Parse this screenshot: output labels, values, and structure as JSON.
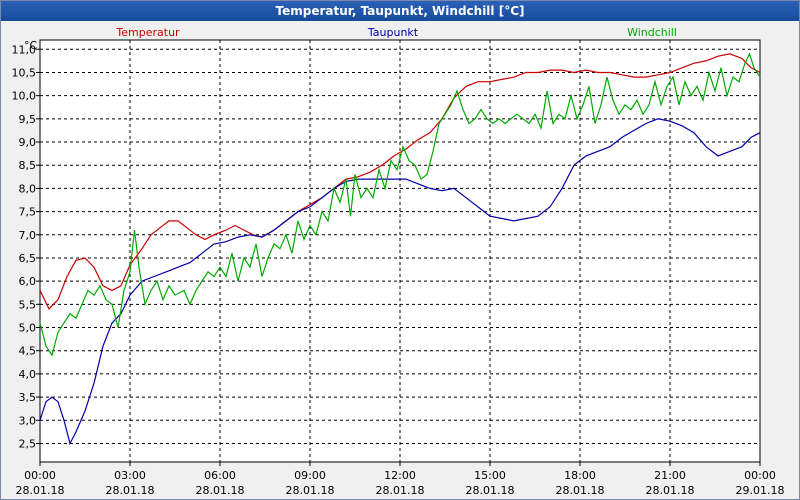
{
  "window": {
    "title": "Temperatur, Taupunkt, Windchill [°C]"
  },
  "chart_data": {
    "type": "line",
    "title": "Temperatur, Taupunkt, Windchill [°C]",
    "ylabel": "°C",
    "xlabel": "",
    "ylim": [
      2.1,
      11.2
    ],
    "xlim": [
      0,
      24
    ],
    "grid": true,
    "y_ticks": [
      "2,5",
      "3,0",
      "3,5",
      "4,0",
      "4,5",
      "5,0",
      "5,5",
      "6,0",
      "6,5",
      "7,0",
      "7,5",
      "8,0",
      "8,5",
      "9,0",
      "9,5",
      "10,0",
      "10,5",
      "11,0"
    ],
    "y_tick_values": [
      2.5,
      3.0,
      3.5,
      4.0,
      4.5,
      5.0,
      5.5,
      6.0,
      6.5,
      7.0,
      7.5,
      8.0,
      8.5,
      9.0,
      9.5,
      10.0,
      10.5,
      11.0
    ],
    "x_ticks": [
      {
        "time": "00:00",
        "date": "28.01.18",
        "h": 0
      },
      {
        "time": "03:00",
        "date": "28.01.18",
        "h": 3
      },
      {
        "time": "06:00",
        "date": "28.01.18",
        "h": 6
      },
      {
        "time": "09:00",
        "date": "28.01.18",
        "h": 9
      },
      {
        "time": "12:00",
        "date": "28.01.18",
        "h": 12
      },
      {
        "time": "15:00",
        "date": "28.01.18",
        "h": 15
      },
      {
        "time": "18:00",
        "date": "28.01.18",
        "h": 18
      },
      {
        "time": "21:00",
        "date": "28.01.18",
        "h": 21
      },
      {
        "time": "00:00",
        "date": "29.01.18",
        "h": 24
      }
    ],
    "legend_position": "top",
    "series": [
      {
        "name": "Temperatur",
        "color": "#cc0000",
        "points": [
          [
            0,
            5.8
          ],
          [
            0.3,
            5.4
          ],
          [
            0.6,
            5.6
          ],
          [
            0.9,
            6.1
          ],
          [
            1.2,
            6.45
          ],
          [
            1.5,
            6.5
          ],
          [
            1.8,
            6.3
          ],
          [
            2.1,
            5.9
          ],
          [
            2.4,
            5.8
          ],
          [
            2.7,
            5.9
          ],
          [
            3.0,
            6.35
          ],
          [
            3.4,
            6.7
          ],
          [
            3.7,
            7.0
          ],
          [
            4.0,
            7.15
          ],
          [
            4.3,
            7.3
          ],
          [
            4.6,
            7.3
          ],
          [
            4.9,
            7.15
          ],
          [
            5.2,
            7.0
          ],
          [
            5.5,
            6.9
          ],
          [
            5.8,
            7.0
          ],
          [
            6.2,
            7.1
          ],
          [
            6.5,
            7.2
          ],
          [
            6.8,
            7.1
          ],
          [
            7.1,
            7.0
          ],
          [
            7.4,
            6.95
          ],
          [
            7.8,
            7.1
          ],
          [
            8.2,
            7.3
          ],
          [
            8.6,
            7.5
          ],
          [
            9.0,
            7.65
          ],
          [
            9.4,
            7.8
          ],
          [
            9.8,
            8.0
          ],
          [
            10.2,
            8.2
          ],
          [
            10.6,
            8.25
          ],
          [
            11.0,
            8.35
          ],
          [
            11.4,
            8.5
          ],
          [
            11.8,
            8.7
          ],
          [
            12.2,
            8.85
          ],
          [
            12.6,
            9.05
          ],
          [
            13.0,
            9.2
          ],
          [
            13.4,
            9.5
          ],
          [
            13.8,
            9.95
          ],
          [
            14.2,
            10.2
          ],
          [
            14.6,
            10.3
          ],
          [
            15.0,
            10.3
          ],
          [
            15.4,
            10.35
          ],
          [
            15.8,
            10.4
          ],
          [
            16.2,
            10.5
          ],
          [
            16.6,
            10.5
          ],
          [
            17.0,
            10.55
          ],
          [
            17.4,
            10.55
          ],
          [
            17.8,
            10.5
          ],
          [
            18.2,
            10.55
          ],
          [
            18.6,
            10.5
          ],
          [
            19.0,
            10.5
          ],
          [
            19.4,
            10.45
          ],
          [
            19.8,
            10.4
          ],
          [
            20.2,
            10.4
          ],
          [
            20.6,
            10.45
          ],
          [
            21.0,
            10.5
          ],
          [
            21.4,
            10.6
          ],
          [
            21.8,
            10.7
          ],
          [
            22.2,
            10.75
          ],
          [
            22.6,
            10.85
          ],
          [
            23.0,
            10.9
          ],
          [
            23.4,
            10.8
          ],
          [
            23.7,
            10.6
          ],
          [
            24.0,
            10.5
          ]
        ]
      },
      {
        "name": "Taupunkt",
        "color": "#0000aa",
        "points": [
          [
            0,
            3.0
          ],
          [
            0.2,
            3.4
          ],
          [
            0.4,
            3.5
          ],
          [
            0.6,
            3.4
          ],
          [
            0.8,
            3.0
          ],
          [
            1.0,
            2.5
          ],
          [
            1.2,
            2.75
          ],
          [
            1.5,
            3.2
          ],
          [
            1.8,
            3.8
          ],
          [
            2.1,
            4.6
          ],
          [
            2.4,
            5.1
          ],
          [
            2.7,
            5.3
          ],
          [
            3.0,
            5.7
          ],
          [
            3.4,
            6.0
          ],
          [
            3.8,
            6.1
          ],
          [
            4.2,
            6.2
          ],
          [
            4.6,
            6.3
          ],
          [
            5.0,
            6.4
          ],
          [
            5.4,
            6.6
          ],
          [
            5.8,
            6.8
          ],
          [
            6.2,
            6.85
          ],
          [
            6.6,
            6.95
          ],
          [
            7.0,
            7.0
          ],
          [
            7.4,
            6.95
          ],
          [
            7.8,
            7.1
          ],
          [
            8.2,
            7.3
          ],
          [
            8.6,
            7.5
          ],
          [
            9.0,
            7.6
          ],
          [
            9.4,
            7.8
          ],
          [
            9.8,
            8.0
          ],
          [
            10.2,
            8.15
          ],
          [
            10.6,
            8.2
          ],
          [
            11.0,
            8.2
          ],
          [
            11.4,
            8.2
          ],
          [
            11.8,
            8.2
          ],
          [
            12.2,
            8.2
          ],
          [
            12.6,
            8.1
          ],
          [
            13.0,
            8.0
          ],
          [
            13.4,
            7.95
          ],
          [
            13.8,
            8.0
          ],
          [
            14.2,
            7.8
          ],
          [
            14.6,
            7.6
          ],
          [
            15.0,
            7.4
          ],
          [
            15.4,
            7.35
          ],
          [
            15.8,
            7.3
          ],
          [
            16.2,
            7.35
          ],
          [
            16.6,
            7.4
          ],
          [
            17.0,
            7.6
          ],
          [
            17.4,
            8.0
          ],
          [
            17.8,
            8.5
          ],
          [
            18.2,
            8.7
          ],
          [
            18.6,
            8.8
          ],
          [
            19.0,
            8.9
          ],
          [
            19.4,
            9.1
          ],
          [
            19.8,
            9.25
          ],
          [
            20.2,
            9.4
          ],
          [
            20.6,
            9.5
          ],
          [
            21.0,
            9.45
          ],
          [
            21.4,
            9.35
          ],
          [
            21.8,
            9.2
          ],
          [
            22.2,
            8.9
          ],
          [
            22.6,
            8.7
          ],
          [
            23.0,
            8.8
          ],
          [
            23.4,
            8.9
          ],
          [
            23.7,
            9.1
          ],
          [
            24.0,
            9.2
          ]
        ]
      },
      {
        "name": "Windchill",
        "color": "#00aa00",
        "points": [
          [
            0,
            5.1
          ],
          [
            0.2,
            4.6
          ],
          [
            0.4,
            4.4
          ],
          [
            0.6,
            4.9
          ],
          [
            0.8,
            5.1
          ],
          [
            1.0,
            5.3
          ],
          [
            1.2,
            5.2
          ],
          [
            1.4,
            5.5
          ],
          [
            1.6,
            5.8
          ],
          [
            1.8,
            5.7
          ],
          [
            2.0,
            5.9
          ],
          [
            2.2,
            5.6
          ],
          [
            2.4,
            5.5
          ],
          [
            2.6,
            5.0
          ],
          [
            2.8,
            5.8
          ],
          [
            3.0,
            6.2
          ],
          [
            3.15,
            7.1
          ],
          [
            3.3,
            6.3
          ],
          [
            3.5,
            5.5
          ],
          [
            3.7,
            5.8
          ],
          [
            3.9,
            6.0
          ],
          [
            4.1,
            5.6
          ],
          [
            4.3,
            5.9
          ],
          [
            4.5,
            5.7
          ],
          [
            4.8,
            5.8
          ],
          [
            5.0,
            5.5
          ],
          [
            5.2,
            5.8
          ],
          [
            5.4,
            6.0
          ],
          [
            5.6,
            6.2
          ],
          [
            5.8,
            6.1
          ],
          [
            6.0,
            6.3
          ],
          [
            6.2,
            6.1
          ],
          [
            6.4,
            6.6
          ],
          [
            6.6,
            6.0
          ],
          [
            6.8,
            6.5
          ],
          [
            7.0,
            6.3
          ],
          [
            7.2,
            6.8
          ],
          [
            7.4,
            6.1
          ],
          [
            7.6,
            6.5
          ],
          [
            7.8,
            6.8
          ],
          [
            8.0,
            6.7
          ],
          [
            8.2,
            7.0
          ],
          [
            8.4,
            6.6
          ],
          [
            8.6,
            7.3
          ],
          [
            8.8,
            6.9
          ],
          [
            9.0,
            7.2
          ],
          [
            9.2,
            7.0
          ],
          [
            9.4,
            7.5
          ],
          [
            9.6,
            7.3
          ],
          [
            9.8,
            8.0
          ],
          [
            10.0,
            7.7
          ],
          [
            10.2,
            8.2
          ],
          [
            10.35,
            7.4
          ],
          [
            10.5,
            8.3
          ],
          [
            10.7,
            7.8
          ],
          [
            10.9,
            8.0
          ],
          [
            11.1,
            7.8
          ],
          [
            11.3,
            8.4
          ],
          [
            11.5,
            8.0
          ],
          [
            11.7,
            8.6
          ],
          [
            11.9,
            8.4
          ],
          [
            12.1,
            8.9
          ],
          [
            12.3,
            8.6
          ],
          [
            12.5,
            8.5
          ],
          [
            12.7,
            8.2
          ],
          [
            12.9,
            8.3
          ],
          [
            13.1,
            8.8
          ],
          [
            13.3,
            9.4
          ],
          [
            13.5,
            9.6
          ],
          [
            13.7,
            9.8
          ],
          [
            13.9,
            10.1
          ],
          [
            14.1,
            9.7
          ],
          [
            14.3,
            9.4
          ],
          [
            14.5,
            9.5
          ],
          [
            14.7,
            9.7
          ],
          [
            14.9,
            9.5
          ],
          [
            15.1,
            9.4
          ],
          [
            15.3,
            9.5
          ],
          [
            15.5,
            9.4
          ],
          [
            15.7,
            9.5
          ],
          [
            15.9,
            9.6
          ],
          [
            16.1,
            9.5
          ],
          [
            16.3,
            9.4
          ],
          [
            16.5,
            9.6
          ],
          [
            16.7,
            9.3
          ],
          [
            16.9,
            10.1
          ],
          [
            17.1,
            9.4
          ],
          [
            17.3,
            9.6
          ],
          [
            17.5,
            9.5
          ],
          [
            17.7,
            10.0
          ],
          [
            17.9,
            9.5
          ],
          [
            18.1,
            9.8
          ],
          [
            18.3,
            10.2
          ],
          [
            18.5,
            9.4
          ],
          [
            18.7,
            9.8
          ],
          [
            18.9,
            10.4
          ],
          [
            19.1,
            9.9
          ],
          [
            19.3,
            9.6
          ],
          [
            19.5,
            9.8
          ],
          [
            19.7,
            9.7
          ],
          [
            19.9,
            9.9
          ],
          [
            20.1,
            9.6
          ],
          [
            20.3,
            9.8
          ],
          [
            20.5,
            10.3
          ],
          [
            20.7,
            9.8
          ],
          [
            20.9,
            10.2
          ],
          [
            21.1,
            10.4
          ],
          [
            21.3,
            9.8
          ],
          [
            21.5,
            10.3
          ],
          [
            21.7,
            10.0
          ],
          [
            21.9,
            10.2
          ],
          [
            22.1,
            9.9
          ],
          [
            22.3,
            10.5
          ],
          [
            22.5,
            10.1
          ],
          [
            22.7,
            10.6
          ],
          [
            22.9,
            10.0
          ],
          [
            23.1,
            10.4
          ],
          [
            23.3,
            10.3
          ],
          [
            23.5,
            10.7
          ],
          [
            23.65,
            10.9
          ],
          [
            23.8,
            10.6
          ],
          [
            24.0,
            10.4
          ]
        ]
      }
    ]
  }
}
